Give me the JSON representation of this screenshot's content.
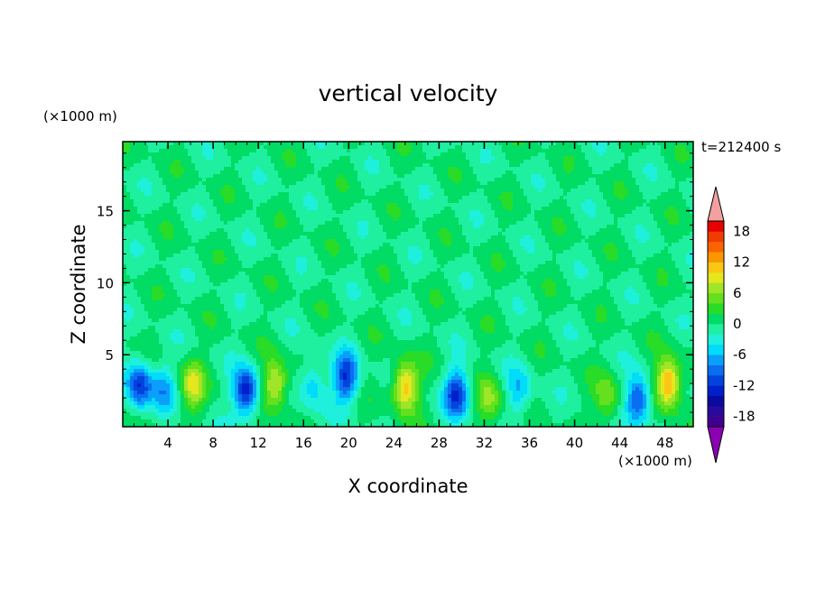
{
  "chart_data": {
    "type": "heatmap",
    "title": "vertical velocity",
    "time_label": "t=212400 s",
    "xlabel": "X coordinate",
    "ylabel": "Z coordinate",
    "x_unit": "(×1000 m)",
    "y_unit": "(×1000 m)",
    "xlim": [
      0,
      50.5
    ],
    "ylim": [
      0,
      19.8
    ],
    "x_ticks": [
      4,
      8,
      12,
      16,
      20,
      24,
      28,
      32,
      36,
      40,
      44,
      48
    ],
    "y_ticks": [
      5,
      10,
      15
    ],
    "colorbar": {
      "levels": [
        -20,
        -18,
        -16,
        -14,
        -12,
        -10,
        -8,
        -6,
        -4,
        -2,
        0,
        2,
        4,
        6,
        8,
        10,
        12,
        14,
        16,
        18,
        20
      ],
      "colors": [
        "#400090",
        "#2a0a9c",
        "#0a0aa0",
        "#0020cc",
        "#0044dc",
        "#0a6ef0",
        "#0aa0fa",
        "#00dcfa",
        "#1ef0dc",
        "#1ef0a0",
        "#00dc64",
        "#28dc28",
        "#64e01e",
        "#a0e628",
        "#e6e61e",
        "#fac814",
        "#fa9600",
        "#fa6400",
        "#f03c00",
        "#e60000"
      ],
      "under_color": "#8c00b4",
      "over_color": "#f4a0a0",
      "tick_labels": [
        "18",
        "12",
        "6",
        "0",
        "-6",
        "-12",
        "-18"
      ]
    },
    "field_features": [
      {
        "x": 1.5,
        "z": 2.8,
        "w": -12
      },
      {
        "x": 3.6,
        "z": 2.6,
        "w": -6
      },
      {
        "x": 6.2,
        "z": 2.8,
        "w": 8
      },
      {
        "x": 10.9,
        "z": 2.4,
        "w": -14
      },
      {
        "x": 13.5,
        "z": 2.9,
        "w": 10
      },
      {
        "x": 16.8,
        "z": 3.0,
        "w": -6
      },
      {
        "x": 19.8,
        "z": 3.4,
        "w": -12
      },
      {
        "x": 25.0,
        "z": 2.8,
        "w": 12
      },
      {
        "x": 29.6,
        "z": 2.3,
        "w": -12
      },
      {
        "x": 32.5,
        "z": 1.8,
        "w": 6
      },
      {
        "x": 35.1,
        "z": 2.4,
        "w": -6
      },
      {
        "x": 42.9,
        "z": 1.9,
        "w": 6
      },
      {
        "x": 45.6,
        "z": 1.8,
        "w": -12
      },
      {
        "x": 48.3,
        "z": 3.0,
        "w": 14
      }
    ]
  }
}
